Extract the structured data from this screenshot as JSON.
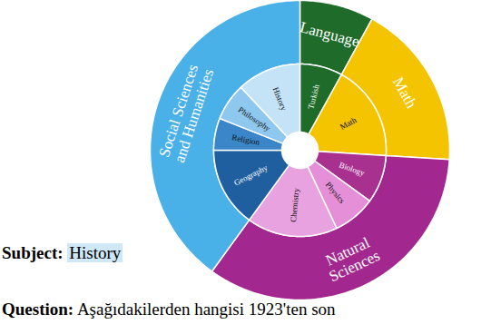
{
  "chart_data": {
    "type": "sunburst",
    "categories": [
      "Language",
      "Math",
      "Natural\nSciences",
      "Social Sciences\nand Humanities"
    ],
    "values": [
      8,
      18,
      34,
      40
    ],
    "colors": [
      "#1e6b2a",
      "#f5c400",
      "#a2288f",
      "#4ab0e8"
    ],
    "children": [
      {
        "categories": [
          "Turkish"
        ],
        "values": [
          8
        ],
        "colors": [
          "#1e6b2a"
        ]
      },
      {
        "categories": [
          "Math"
        ],
        "values": [
          18
        ],
        "colors": [
          "#f5c400"
        ]
      },
      {
        "categories": [
          "Biology",
          "Physics",
          "Chemistry"
        ],
        "values": [
          9,
          8,
          17
        ],
        "colors": [
          "#a8308f",
          "#e58fd8",
          "#e8a2e0"
        ]
      },
      {
        "categories": [
          "Geography",
          "Religion",
          "Philosophy",
          "History"
        ],
        "values": [
          15,
          6,
          7,
          12
        ],
        "colors": [
          "#1f5fa0",
          "#3a86c8",
          "#8fc8ee",
          "#c4e3f6"
        ]
      }
    ],
    "annotations": [
      {
        "label": "Subject:",
        "text": "History"
      },
      {
        "label": "Question:",
        "text": "Aşağıdakilerden hangisi 1923'ten son"
      }
    ]
  }
}
